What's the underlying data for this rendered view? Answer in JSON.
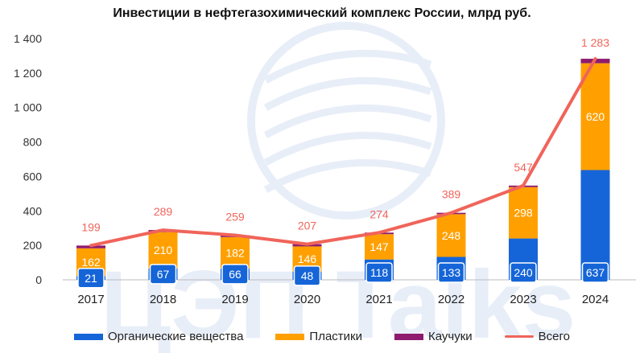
{
  "title": "Инвестиции в нефтегазохимический комплекс России, млрд руб.",
  "colors": {
    "organic": "#1565D8",
    "plastics": "#FFA000",
    "rubber": "#8E1B6E",
    "total": "#F0645A",
    "watermark": "#D6E1F3"
  },
  "watermark_text": "ЦЭП Talks",
  "chart_data": {
    "type": "bar",
    "stacked": true,
    "categories": [
      "2017",
      "2018",
      "2019",
      "2020",
      "2021",
      "2022",
      "2023",
      "2024"
    ],
    "series": [
      {
        "name": "Органические вещества",
        "type": "bar",
        "values": [
          21,
          67,
          66,
          48,
          118,
          133,
          240,
          637
        ]
      },
      {
        "name": "Пластики",
        "type": "bar",
        "values": [
          162,
          210,
          182,
          146,
          147,
          248,
          298,
          620
        ]
      },
      {
        "name": "Каучуки",
        "type": "bar",
        "values": [
          16,
          12,
          11,
          13,
          9,
          8,
          9,
          26
        ]
      },
      {
        "name": "Всего",
        "type": "line",
        "values": [
          199,
          289,
          259,
          207,
          274,
          389,
          547,
          1283
        ]
      }
    ],
    "y_ticks": [
      "0",
      "200",
      "400",
      "600",
      "800",
      "1 000",
      "1 200",
      "1 400"
    ],
    "ylim": [
      0,
      1400
    ],
    "total_labels": [
      "199",
      "289",
      "259",
      "207",
      "274",
      "389",
      "547",
      "1 283"
    ],
    "grid": false,
    "legend_position": "bottom"
  }
}
